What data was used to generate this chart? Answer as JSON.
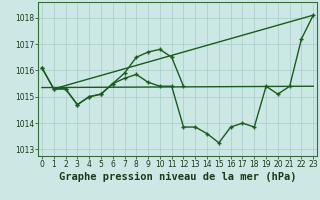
{
  "xlabel": "Graphe pression niveau de la mer (hPa)",
  "background_color": "#cce8e5",
  "grid_color": "#aaccca",
  "line_color": "#1a5c1a",
  "xlim": [
    -0.3,
    23.3
  ],
  "ylim": [
    1012.75,
    1018.6
  ],
  "xticks": [
    0,
    1,
    2,
    3,
    4,
    5,
    6,
    7,
    8,
    9,
    10,
    11,
    12,
    13,
    14,
    15,
    16,
    17,
    18,
    19,
    20,
    21,
    22,
    23
  ],
  "yticks": [
    1013,
    1014,
    1015,
    1016,
    1017,
    1018
  ],
  "series": [
    {
      "x": [
        0,
        1,
        2,
        3,
        4,
        5,
        6,
        7,
        8,
        9,
        10,
        11,
        12
      ],
      "y": [
        1016.1,
        1015.3,
        1015.3,
        1014.7,
        1015.0,
        1015.1,
        1015.5,
        1015.9,
        1016.5,
        1016.7,
        1016.8,
        1016.5,
        1015.4
      ],
      "marker": true,
      "linestyle": "-"
    },
    {
      "x": [
        0,
        1,
        2,
        3,
        4,
        5,
        6,
        7,
        8,
        9,
        10,
        11,
        12,
        13,
        14,
        15,
        16,
        17,
        18,
        19,
        20,
        21,
        22,
        23
      ],
      "y": [
        1016.1,
        1015.3,
        1015.3,
        1014.7,
        1015.0,
        1015.1,
        1015.5,
        1015.7,
        1015.85,
        1015.55,
        1015.4,
        1015.4,
        1013.85,
        1013.85,
        1013.6,
        1013.25,
        1013.85,
        1014.0,
        1013.85,
        1015.4,
        1015.1,
        1015.4,
        1017.2,
        1018.1
      ],
      "marker": true,
      "linestyle": "-"
    },
    {
      "x": [
        0,
        23
      ],
      "y": [
        1015.35,
        1015.4
      ],
      "marker": false,
      "linestyle": "-"
    },
    {
      "comment": "diagonal line from ~(1,1015.3) to (23,1018.1)",
      "x": [
        1,
        23
      ],
      "y": [
        1015.3,
        1018.1
      ],
      "marker": false,
      "linestyle": "-"
    }
  ],
  "markersize": 3.5,
  "markeredgewidth": 1.0,
  "linewidth": 1.0,
  "tick_fontsize": 5.5,
  "xlabel_fontsize": 7.5
}
